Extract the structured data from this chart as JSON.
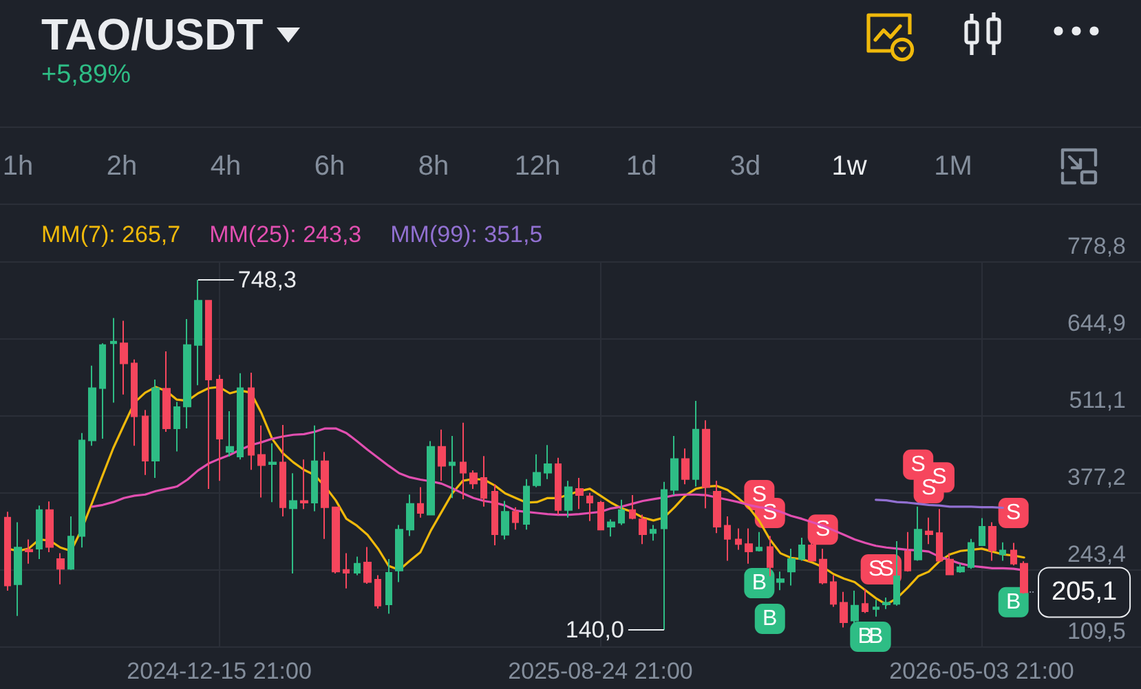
{
  "chart_data": {
    "type": "candlestick",
    "title": "TAO/USDT",
    "subtitle": "+5,89%",
    "annotations": [
      "1h",
      "2h",
      "4h",
      "6h",
      "8h",
      "12h",
      "1d",
      "3d",
      "1w",
      "1M",
      {
        "text": "748,3",
        "x": "2024-12-01T21:00",
        "y": 748.3
      },
      {
        "text": "140,0",
        "x": "2025-10-05T21:00",
        "y": 140.0
      }
    ],
    "x": [
      "2024-07-28T21:00",
      "2024-08-04T21:00",
      "2024-08-11T21:00",
      "2024-08-18T21:00",
      "2024-08-25T21:00",
      "2024-09-01T21:00",
      "2024-09-08T21:00",
      "2024-09-15T21:00",
      "2024-09-22T21:00",
      "2024-09-29T21:00",
      "2024-10-06T21:00",
      "2024-10-13T21:00",
      "2024-10-20T21:00",
      "2024-10-27T21:00",
      "2024-11-03T21:00",
      "2024-11-10T21:00",
      "2024-11-17T21:00",
      "2024-11-24T21:00",
      "2024-12-01T21:00",
      "2024-12-08T21:00",
      "2024-12-15T21:00",
      "2024-12-22T21:00",
      "2024-12-29T21:00",
      "2025-01-05T21:00",
      "2025-01-12T21:00",
      "2025-01-19T21:00",
      "2025-01-26T21:00",
      "2025-02-02T21:00",
      "2025-02-09T21:00",
      "2025-02-16T21:00",
      "2025-02-23T21:00",
      "2025-03-02T21:00",
      "2025-03-09T21:00",
      "2025-03-16T21:00",
      "2025-03-23T21:00",
      "2025-03-30T21:00",
      "2025-04-06T21:00",
      "2025-04-13T21:00",
      "2025-04-20T21:00",
      "2025-04-27T21:00",
      "2025-05-04T21:00",
      "2025-05-11T21:00",
      "2025-05-18T21:00",
      "2025-05-25T21:00",
      "2025-06-01T21:00",
      "2025-06-08T21:00",
      "2025-06-15T21:00",
      "2025-06-22T21:00",
      "2025-06-29T21:00",
      "2025-07-06T21:00",
      "2025-07-13T21:00",
      "2025-07-20T21:00",
      "2025-07-27T21:00",
      "2025-08-03T21:00",
      "2025-08-10T21:00",
      "2025-08-17T21:00",
      "2025-08-24T21:00",
      "2025-08-31T21:00",
      "2025-09-07T21:00",
      "2025-09-14T21:00",
      "2025-09-21T21:00",
      "2025-09-28T21:00",
      "2025-10-05T21:00",
      "2025-10-12T21:00",
      "2025-10-19T21:00",
      "2025-10-26T21:00",
      "2025-11-02T21:00",
      "2025-11-09T21:00",
      "2025-11-16T21:00",
      "2025-11-23T21:00",
      "2025-11-30T21:00",
      "2025-12-07T21:00",
      "2025-12-14T21:00",
      "2025-12-21T21:00",
      "2025-12-28T21:00",
      "2026-01-04T21:00",
      "2026-01-11T21:00",
      "2026-01-18T21:00",
      "2026-01-25T21:00",
      "2026-02-01T21:00",
      "2026-02-08T21:00",
      "2026-02-15T21:00",
      "2026-02-22T21:00",
      "2026-03-01T21:00",
      "2026-03-08T21:00",
      "2026-03-15T21:00",
      "2026-03-22T21:00",
      "2026-03-29T21:00",
      "2026-04-05T21:00",
      "2026-04-12T21:00",
      "2026-04-19T21:00",
      "2026-04-26T21:00",
      "2026-05-03T21:00",
      "2026-05-10T21:00",
      "2026-05-17T21:00",
      "2026-05-24T21:00",
      "2026-05-31T21:00"
    ],
    "ohlc": [
      [
        335,
        345,
        208,
        217
      ],
      [
        219,
        327,
        164,
        283
      ],
      [
        279,
        297,
        255,
        276
      ],
      [
        281,
        356,
        263,
        348
      ],
      [
        348,
        363,
        275,
        284
      ],
      [
        263,
        273,
        219,
        246
      ],
      [
        246,
        337,
        244,
        302
      ],
      [
        303,
        482,
        283,
        469
      ],
      [
        469,
        599,
        460,
        560
      ],
      [
        560,
        638,
        472,
        635
      ],
      [
        638,
        682,
        535,
        641
      ],
      [
        638,
        677,
        549,
        603
      ],
      [
        603,
        610,
        460,
        511
      ],
      [
        511,
        522,
        409,
        434
      ],
      [
        434,
        575,
        404,
        560
      ],
      [
        559,
        624,
        484,
        490
      ],
      [
        490,
        536,
        450,
        527
      ],
      [
        528,
        680,
        490,
        635
      ],
      [
        635,
        748.3,
        565,
        712
      ],
      [
        712,
        713,
        385,
        575
      ],
      [
        575,
        583,
        399,
        472
      ],
      [
        449,
        520,
        441,
        458
      ],
      [
        441,
        586,
        436,
        560
      ],
      [
        560,
        587,
        418,
        444
      ],
      [
        444,
        495,
        370,
        426
      ],
      [
        428,
        464,
        362,
        431
      ],
      [
        431,
        496,
        337,
        353
      ],
      [
        351,
        412,
        238,
        364
      ],
      [
        364,
        436,
        350,
        361
      ],
      [
        361,
        495,
        346,
        433
      ],
      [
        433,
        449,
        298,
        353
      ],
      [
        353,
        354,
        238,
        241
      ],
      [
        244,
        273,
        212,
        239
      ],
      [
        239,
        267,
        235,
        255
      ],
      [
        257,
        284,
        220,
        223
      ],
      [
        227,
        235,
        177,
        182
      ],
      [
        184,
        263,
        168,
        239
      ],
      [
        243,
        322,
        223,
        314
      ],
      [
        314,
        375,
        303,
        359
      ],
      [
        359,
        388,
        335,
        343
      ],
      [
        340,
        468,
        340,
        458
      ],
      [
        458,
        488,
        399,
        425
      ],
      [
        426,
        477,
        369,
        431
      ],
      [
        431,
        500,
        367,
        413
      ],
      [
        412,
        417,
        385,
        394
      ],
      [
        404,
        442,
        354,
        369
      ],
      [
        380,
        393,
        287,
        306
      ],
      [
        305,
        364,
        297,
        345
      ],
      [
        345,
        353,
        314,
        327
      ],
      [
        324,
        402,
        314,
        389
      ],
      [
        391,
        445,
        388,
        413
      ],
      [
        413,
        461,
        402,
        428
      ],
      [
        428,
        439,
        340,
        348
      ],
      [
        348,
        399,
        335,
        388
      ],
      [
        385,
        404,
        350,
        374
      ],
      [
        372,
        378,
        329,
        361
      ],
      [
        361,
        364,
        313,
        314
      ],
      [
        319,
        332,
        302,
        327
      ],
      [
        326,
        366,
        322,
        348
      ],
      [
        348,
        374,
        332,
        334
      ],
      [
        332,
        340,
        289,
        306
      ],
      [
        308,
        322,
        295,
        314
      ],
      [
        316,
        397,
        140.0,
        383
      ],
      [
        383,
        477,
        374,
        437
      ],
      [
        437,
        455,
        393,
        402
      ],
      [
        402,
        538,
        389,
        488
      ],
      [
        488,
        504,
        351,
        388
      ],
      [
        380,
        399,
        308,
        319
      ],
      [
        321,
        337,
        260,
        298
      ],
      [
        297,
        316,
        279,
        289
      ],
      [
        289,
        316,
        255,
        276
      ],
      [
        278,
        310,
        276,
        283
      ],
      [
        284,
        303,
        233,
        249
      ],
      [
        223,
        241,
        209,
        228
      ],
      [
        241,
        281,
        217,
        263
      ],
      [
        263,
        300,
        260,
        287
      ],
      [
        287,
        308,
        259,
        260
      ],
      [
        262,
        281,
        219,
        222
      ],
      [
        223,
        235,
        180,
        185
      ],
      [
        187,
        206,
        144,
        153
      ],
      [
        156,
        208,
        147,
        182
      ],
      [
        185,
        211,
        169,
        172
      ],
      [
        176,
        192,
        163,
        179
      ],
      [
        184,
        196,
        176,
        187
      ],
      [
        185,
        294,
        182,
        233
      ],
      [
        276,
        310,
        241,
        243
      ],
      [
        262,
        354,
        260,
        314
      ],
      [
        311,
        335,
        289,
        306
      ],
      [
        308,
        350,
        259,
        260
      ],
      [
        262,
        273,
        235,
        236
      ],
      [
        241,
        255,
        239,
        249
      ],
      [
        249,
        298,
        246,
        291
      ],
      [
        287,
        334,
        286,
        319
      ],
      [
        319,
        327,
        260,
        278
      ],
      [
        271,
        292,
        260,
        278
      ],
      [
        278,
        291,
        252,
        255
      ],
      [
        255,
        259,
        203,
        205.1
      ]
    ],
    "series": [
      {
        "type": "line",
        "name": "MM(7): 265,7",
        "color": "#f0b90b",
        "values": [
          281,
          277,
          281,
          297,
          295,
          283,
          277,
          314,
          361,
          409,
          456,
          496,
          535,
          552,
          562,
          555,
          540,
          538,
          551,
          560,
          562,
          551,
          556,
          552,
          516,
          472,
          447,
          431,
          418,
          409,
          389,
          365,
          333,
          321,
          305,
          281,
          251,
          244,
          260,
          275,
          313,
          345,
          377,
          399,
          402,
          401,
          391,
          377,
          369,
          361,
          362,
          369,
          369,
          375,
          381,
          385,
          373,
          361,
          351,
          345,
          335,
          330,
          335,
          353,
          373,
          385,
          389,
          390,
          383,
          369,
          353,
          329,
          297,
          273,
          265,
          263,
          257,
          249,
          237,
          229,
          223,
          209,
          195,
          184,
          195,
          213,
          233,
          241,
          259,
          271,
          277,
          279,
          281,
          276,
          271,
          269,
          265.7
        ]
      },
      {
        "type": "line",
        "name": "MM(25): 243,3",
        "color": "#e14fb0",
        "values": [
          null,
          null,
          null,
          null,
          null,
          null,
          null,
          null,
          354,
          357,
          362,
          369,
          373,
          375,
          381,
          385,
          389,
          401,
          417,
          429,
          437,
          444,
          453,
          461,
          466,
          472,
          476,
          479,
          480,
          484,
          490,
          490,
          482,
          468,
          453,
          439,
          425,
          412,
          405,
          401,
          398,
          394,
          386,
          377,
          369,
          364,
          361,
          356,
          347,
          345,
          343,
          341,
          340,
          340,
          341,
          343,
          345,
          351,
          354,
          359,
          364,
          367,
          370,
          374,
          375,
          375,
          374,
          370,
          366,
          362,
          357,
          353,
          351,
          345,
          338,
          333,
          327,
          321,
          313,
          305,
          297,
          291,
          286,
          283,
          281,
          279,
          278,
          276,
          267,
          261,
          255,
          251,
          249,
          247,
          247,
          246,
          243.3
        ]
      },
      {
        "type": "line",
        "name": "MM(99): 351,5",
        "color": "#9170d1",
        "x": [
          "2026-02-22T21:00",
          "2026-03-01T21:00",
          "2026-03-08T21:00",
          "2026-03-15T21:00",
          "2026-03-22T21:00",
          "2026-03-29T21:00",
          "2026-04-05T21:00",
          "2026-04-12T21:00",
          "2026-04-19T21:00",
          "2026-04-26T21:00",
          "2026-05-03T21:00",
          "2026-05-10T21:00",
          "2026-05-17T21:00"
        ],
        "values": [
          366,
          365,
          362,
          361,
          359,
          357,
          356,
          354,
          354,
          354,
          353,
          353,
          352
        ]
      },
      {
        "type": "scatter",
        "color": "#f6465d",
        "marker": "square",
        "x": [
          "2025-12-07T21:00",
          "2025-12-14T21:00",
          "2026-01-18T21:00",
          "2026-02-22T21:00",
          "2026-03-01T21:00",
          "2026-03-22T21:00",
          "2026-03-29T21:00",
          "2026-04-05T21:00",
          "2026-05-24T21:00"
        ],
        "values": [
          374,
          343,
          314,
          245,
          245,
          427,
          386,
          405,
          343
        ],
        "value_labels": [
          "S",
          "S",
          "S",
          "S",
          "S",
          "S",
          "S",
          "S",
          "S"
        ]
      },
      {
        "type": "scatter",
        "color": "#2ebd85",
        "marker": "square",
        "x": [
          "2025-12-07T21:00",
          "2025-12-14T21:00",
          "2026-02-15T21:00",
          "2026-02-22T21:00",
          "2026-05-24T21:00"
        ],
        "values": [
          221,
          159,
          128,
          128,
          188
        ],
        "value_labels": [
          "B",
          "B",
          "B",
          "B",
          "B"
        ]
      }
    ],
    "xlim": [
      "2024-07-23T23:00",
      "2026-08-17T04:00"
    ],
    "xticks": [
      {
        "value": "2024-12-15T21:00",
        "label": "2024-12-15 21:00"
      },
      {
        "value": "2025-08-24T21:00",
        "label": "2025-08-24 21:00"
      },
      {
        "value": "2026-05-03T21:00",
        "label": "2026-05-03 21:00"
      }
    ],
    "ylim": [
      109.5,
      778.8
    ],
    "yticks": [
      {
        "value": 109.5,
        "label": "109,5"
      },
      {
        "value": 243.4,
        "label": "243,4"
      },
      {
        "value": 377.2,
        "label": "377,2"
      },
      {
        "value": 511.1,
        "label": "511,1"
      },
      {
        "value": 644.9,
        "label": "644,9"
      },
      {
        "value": 778.8,
        "label": "778,8"
      }
    ],
    "ref_lines": [
      {
        "axis": "y",
        "value": 205.1,
        "label": "205,1"
      }
    ],
    "grid": true,
    "legend": "top left"
  }
}
